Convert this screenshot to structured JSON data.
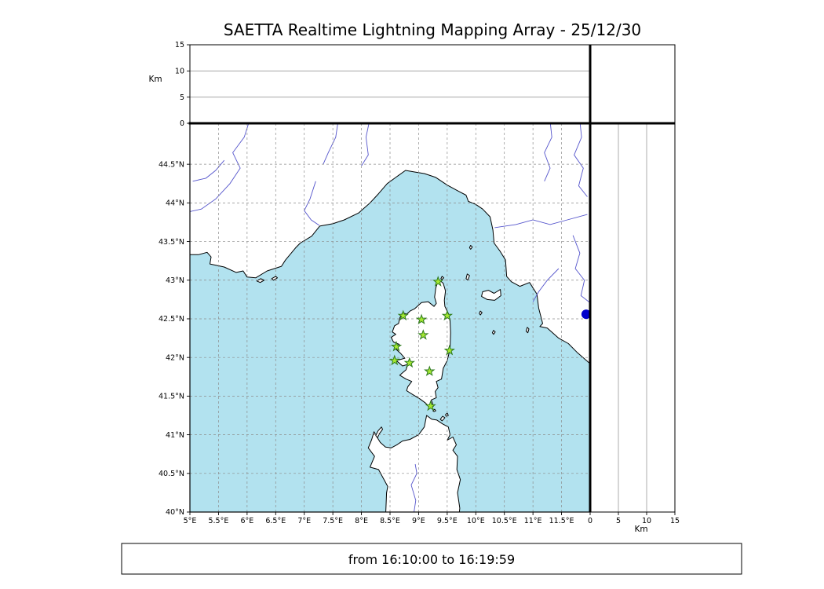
{
  "colors": {
    "sea": "#b2e2ef",
    "land": "#ffffff",
    "coast": "#000000",
    "river": "#5555cc",
    "grid": "#8c8c8c"
  },
  "chart_data": {
    "type": "scatter",
    "title": "SAETTA Realtime Lightning Mapping Array - 25/12/30",
    "time_window_label": "from 16:10:00 to 16:19:59",
    "map_panel": {
      "xlim": [
        5,
        12
      ],
      "ylim": [
        40,
        45.03
      ],
      "x_tick_values": [
        5,
        5.5,
        6,
        6.5,
        7,
        7.5,
        8,
        8.5,
        9,
        9.5,
        10,
        10.5,
        11,
        11.5
      ],
      "x_tick_labels": [
        "5°E",
        "5.5°E",
        "6°E",
        "6.5°E",
        "7°E",
        "7.5°E",
        "8°E",
        "8.5°E",
        "9°E",
        "9.5°E",
        "10°E",
        "10.5°E",
        "11°E",
        "11.5°E"
      ],
      "y_tick_values": [
        40,
        40.5,
        41,
        41.5,
        42,
        42.5,
        43,
        43.5,
        44,
        44.5
      ],
      "y_tick_labels": [
        "40°N",
        "40.5°N",
        "41°N",
        "41.5°N",
        "42°N",
        "42.5°N",
        "43°N",
        "43.5°N",
        "44°N",
        "44.5°N"
      ],
      "grid": "dashed",
      "station_markers": {
        "shape": "star",
        "color": "#a5e832",
        "edge_color": "#2e7a1e",
        "points_lon_lat": [
          [
            9.34,
            42.98
          ],
          [
            8.73,
            42.54
          ],
          [
            9.05,
            42.49
          ],
          [
            9.5,
            42.54
          ],
          [
            9.08,
            42.29
          ],
          [
            8.61,
            42.14
          ],
          [
            9.54,
            42.09
          ],
          [
            8.58,
            41.96
          ],
          [
            8.84,
            41.93
          ],
          [
            9.19,
            41.82
          ],
          [
            9.21,
            41.37
          ]
        ]
      },
      "extra_marker": {
        "shape": "circle",
        "color": "#0000cc",
        "lon_lat": [
          11.93,
          42.56
        ]
      }
    },
    "altitude_top_panel": {
      "axis_label": "Km",
      "lim": [
        0,
        15
      ],
      "tick_values": [
        0,
        5,
        10,
        15
      ],
      "tick_labels": [
        "0",
        "5",
        "10",
        "15"
      ],
      "gridlines": [
        5,
        10
      ],
      "points": []
    },
    "altitude_right_panel": {
      "axis_label": "Km",
      "lim": [
        0,
        15
      ],
      "tick_values": [
        0,
        5,
        10,
        15
      ],
      "tick_labels": [
        "0",
        "5",
        "10",
        "15"
      ],
      "gridlines": [
        5,
        10
      ],
      "points": []
    }
  },
  "map_geometry": {
    "mainland": [
      [
        5.0,
        43.33
      ],
      [
        5.15,
        43.33
      ],
      [
        5.3,
        43.36
      ],
      [
        5.37,
        43.3
      ],
      [
        5.35,
        43.21
      ],
      [
        5.6,
        43.17
      ],
      [
        5.81,
        43.1
      ],
      [
        5.93,
        43.12
      ],
      [
        6.0,
        43.04
      ],
      [
        6.15,
        43.03
      ],
      [
        6.35,
        43.12
      ],
      [
        6.6,
        43.18
      ],
      [
        6.67,
        43.26
      ],
      [
        6.85,
        43.42
      ],
      [
        6.93,
        43.48
      ],
      [
        7.13,
        43.57
      ],
      [
        7.27,
        43.7
      ],
      [
        7.5,
        43.73
      ],
      [
        7.7,
        43.78
      ],
      [
        7.95,
        43.87
      ],
      [
        8.15,
        44.0
      ],
      [
        8.3,
        44.12
      ],
      [
        8.45,
        44.25
      ],
      [
        8.6,
        44.33
      ],
      [
        8.77,
        44.42
      ],
      [
        8.93,
        44.4
      ],
      [
        9.1,
        44.38
      ],
      [
        9.3,
        44.33
      ],
      [
        9.5,
        44.23
      ],
      [
        9.7,
        44.15
      ],
      [
        9.83,
        44.1
      ],
      [
        9.87,
        44.02
      ],
      [
        10.0,
        43.98
      ],
      [
        10.12,
        43.92
      ],
      [
        10.25,
        43.82
      ],
      [
        10.3,
        43.65
      ],
      [
        10.32,
        43.48
      ],
      [
        10.42,
        43.38
      ],
      [
        10.52,
        43.26
      ],
      [
        10.54,
        43.05
      ],
      [
        10.62,
        42.98
      ],
      [
        10.77,
        42.92
      ],
      [
        10.94,
        42.97
      ],
      [
        11.07,
        42.82
      ],
      [
        11.1,
        42.64
      ],
      [
        11.17,
        42.44
      ],
      [
        11.12,
        42.4
      ],
      [
        11.25,
        42.38
      ],
      [
        11.45,
        42.25
      ],
      [
        11.62,
        42.18
      ],
      [
        11.78,
        42.06
      ],
      [
        12.0,
        41.92
      ],
      [
        12.1,
        41.85
      ],
      [
        12.1,
        45.2
      ],
      [
        4.9,
        45.2
      ],
      [
        4.9,
        43.35
      ]
    ],
    "corsica": [
      [
        9.35,
        43.01
      ],
      [
        9.3,
        42.9
      ],
      [
        9.28,
        42.78
      ],
      [
        9.31,
        42.7
      ],
      [
        9.27,
        42.66
      ],
      [
        9.17,
        42.72
      ],
      [
        9.05,
        42.71
      ],
      [
        8.93,
        42.63
      ],
      [
        8.85,
        42.6
      ],
      [
        8.79,
        42.56
      ],
      [
        8.72,
        42.58
      ],
      [
        8.67,
        42.51
      ],
      [
        8.65,
        42.44
      ],
      [
        8.58,
        42.41
      ],
      [
        8.54,
        42.33
      ],
      [
        8.6,
        42.3
      ],
      [
        8.52,
        42.26
      ],
      [
        8.56,
        42.2
      ],
      [
        8.66,
        42.17
      ],
      [
        8.6,
        42.11
      ],
      [
        8.69,
        42.05
      ],
      [
        8.76,
        41.99
      ],
      [
        8.61,
        41.96
      ],
      [
        8.72,
        41.89
      ],
      [
        8.81,
        41.91
      ],
      [
        8.78,
        41.84
      ],
      [
        8.67,
        41.77
      ],
      [
        8.78,
        41.72
      ],
      [
        8.88,
        41.69
      ],
      [
        8.81,
        41.62
      ],
      [
        8.79,
        41.57
      ],
      [
        8.92,
        41.51
      ],
      [
        9.03,
        41.46
      ],
      [
        9.12,
        41.41
      ],
      [
        9.16,
        41.38
      ],
      [
        9.26,
        41.37
      ],
      [
        9.22,
        41.45
      ],
      [
        9.31,
        41.48
      ],
      [
        9.29,
        41.56
      ],
      [
        9.34,
        41.61
      ],
      [
        9.31,
        41.69
      ],
      [
        9.4,
        41.72
      ],
      [
        9.43,
        41.86
      ],
      [
        9.5,
        41.96
      ],
      [
        9.55,
        42.11
      ],
      [
        9.56,
        42.32
      ],
      [
        9.55,
        42.47
      ],
      [
        9.52,
        42.57
      ],
      [
        9.46,
        42.66
      ],
      [
        9.45,
        42.74
      ],
      [
        9.47,
        42.86
      ],
      [
        9.43,
        42.96
      ]
    ],
    "sardinia": [
      [
        8.42,
        39.9
      ],
      [
        8.44,
        40.25
      ],
      [
        8.46,
        40.33
      ],
      [
        8.35,
        40.48
      ],
      [
        8.3,
        40.55
      ],
      [
        8.15,
        40.58
      ],
      [
        8.23,
        40.72
      ],
      [
        8.12,
        40.83
      ],
      [
        8.18,
        40.94
      ],
      [
        8.22,
        41.04
      ],
      [
        8.28,
        40.96
      ],
      [
        8.33,
        40.9
      ],
      [
        8.42,
        40.84
      ],
      [
        8.52,
        40.83
      ],
      [
        8.62,
        40.87
      ],
      [
        8.72,
        40.92
      ],
      [
        8.85,
        40.94
      ],
      [
        9.0,
        41.0
      ],
      [
        9.1,
        41.1
      ],
      [
        9.14,
        41.25
      ],
      [
        9.23,
        41.2
      ],
      [
        9.32,
        41.19
      ],
      [
        9.42,
        41.14
      ],
      [
        9.52,
        41.1
      ],
      [
        9.55,
        41.0
      ],
      [
        9.5,
        40.93
      ],
      [
        9.6,
        40.97
      ],
      [
        9.66,
        40.87
      ],
      [
        9.6,
        40.8
      ],
      [
        9.68,
        40.72
      ],
      [
        9.67,
        40.55
      ],
      [
        9.73,
        40.42
      ],
      [
        9.68,
        40.25
      ],
      [
        9.72,
        40.05
      ],
      [
        9.7,
        39.9
      ]
    ],
    "islands": [
      [
        [
          8.25,
          40.99
        ],
        [
          8.29,
          41.05
        ],
        [
          8.35,
          41.1
        ],
        [
          8.37,
          41.07
        ],
        [
          8.31,
          41.01
        ],
        [
          8.28,
          40.96
        ]
      ],
      [
        [
          9.38,
          41.2
        ],
        [
          9.42,
          41.24
        ],
        [
          9.46,
          41.22
        ],
        [
          9.41,
          41.18
        ]
      ],
      [
        [
          9.47,
          41.26
        ],
        [
          9.5,
          41.28
        ],
        [
          9.52,
          41.25
        ],
        [
          9.48,
          41.24
        ]
      ],
      [
        [
          9.25,
          41.31
        ],
        [
          9.28,
          41.33
        ],
        [
          9.3,
          41.31
        ],
        [
          9.27,
          41.3
        ]
      ],
      [
        [
          10.1,
          42.79
        ],
        [
          10.12,
          42.85
        ],
        [
          10.22,
          42.87
        ],
        [
          10.32,
          42.83
        ],
        [
          10.43,
          42.88
        ],
        [
          10.44,
          42.8
        ],
        [
          10.33,
          42.74
        ],
        [
          10.2,
          42.75
        ]
      ],
      [
        [
          9.83,
          43.02
        ],
        [
          9.85,
          43.08
        ],
        [
          9.89,
          43.06
        ],
        [
          9.86,
          43.0
        ]
      ],
      [
        [
          9.89,
          43.42
        ],
        [
          9.91,
          43.45
        ],
        [
          9.94,
          43.43
        ],
        [
          9.91,
          43.4
        ]
      ],
      [
        [
          9.39,
          43.02
        ],
        [
          9.41,
          43.05
        ],
        [
          9.44,
          43.03
        ],
        [
          9.41,
          43.01
        ]
      ],
      [
        [
          10.06,
          42.57
        ],
        [
          10.08,
          42.6
        ],
        [
          10.11,
          42.58
        ],
        [
          10.08,
          42.55
        ]
      ],
      [
        [
          10.29,
          42.32
        ],
        [
          10.31,
          42.35
        ],
        [
          10.34,
          42.33
        ],
        [
          10.31,
          42.3
        ]
      ],
      [
        [
          10.88,
          42.34
        ],
        [
          10.9,
          42.39
        ],
        [
          10.93,
          42.37
        ],
        [
          10.91,
          42.32
        ]
      ],
      [
        [
          6.17,
          42.99
        ],
        [
          6.24,
          43.02
        ],
        [
          6.3,
          43.0
        ],
        [
          6.23,
          42.97
        ]
      ],
      [
        [
          6.43,
          43.02
        ],
        [
          6.5,
          43.05
        ],
        [
          6.53,
          43.03
        ],
        [
          6.46,
          43.0
        ]
      ]
    ],
    "rivers": [
      [
        [
          6.1,
          45.2
        ],
        [
          5.95,
          44.85
        ],
        [
          5.75,
          44.65
        ],
        [
          5.88,
          44.45
        ],
        [
          5.7,
          44.25
        ],
        [
          5.45,
          44.05
        ],
        [
          5.2,
          43.92
        ],
        [
          4.95,
          43.88
        ]
      ],
      [
        [
          5.6,
          44.55
        ],
        [
          5.45,
          44.42
        ],
        [
          5.28,
          44.32
        ],
        [
          5.05,
          44.28
        ]
      ],
      [
        [
          7.2,
          44.28
        ],
        [
          7.1,
          44.05
        ],
        [
          7.0,
          43.9
        ],
        [
          7.12,
          43.78
        ],
        [
          7.26,
          43.71
        ]
      ],
      [
        [
          7.62,
          45.2
        ],
        [
          7.55,
          44.85
        ],
        [
          7.42,
          44.65
        ],
        [
          7.33,
          44.5
        ]
      ],
      [
        [
          8.18,
          45.2
        ],
        [
          8.08,
          44.85
        ],
        [
          8.12,
          44.62
        ],
        [
          8.0,
          44.48
        ]
      ],
      [
        [
          11.28,
          45.2
        ],
        [
          11.33,
          44.85
        ],
        [
          11.2,
          44.65
        ],
        [
          11.3,
          44.45
        ],
        [
          11.2,
          44.28
        ]
      ],
      [
        [
          11.8,
          45.2
        ],
        [
          11.85,
          44.85
        ],
        [
          11.72,
          44.62
        ],
        [
          11.88,
          44.45
        ],
        [
          11.8,
          44.22
        ],
        [
          11.95,
          44.08
        ]
      ],
      [
        [
          11.95,
          43.85
        ],
        [
          11.6,
          43.78
        ],
        [
          11.3,
          43.72
        ],
        [
          11.0,
          43.78
        ],
        [
          10.7,
          43.72
        ],
        [
          10.33,
          43.68
        ]
      ],
      [
        [
          11.7,
          43.58
        ],
        [
          11.82,
          43.35
        ],
        [
          11.74,
          43.15
        ],
        [
          11.9,
          43.0
        ],
        [
          11.84,
          42.8
        ],
        [
          12.05,
          42.68
        ]
      ],
      [
        [
          11.45,
          43.15
        ],
        [
          11.25,
          43.0
        ],
        [
          11.1,
          42.85
        ],
        [
          11.0,
          42.72
        ]
      ],
      [
        [
          8.9,
          39.9
        ],
        [
          8.95,
          40.15
        ],
        [
          8.87,
          40.35
        ],
        [
          8.97,
          40.5
        ],
        [
          8.94,
          40.62
        ]
      ]
    ]
  }
}
